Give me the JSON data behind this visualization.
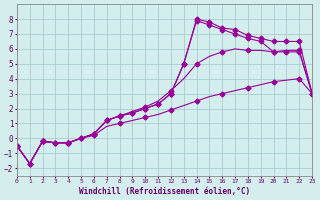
{
  "xlabel": "Windchill (Refroidissement éolien,°C)",
  "bg_color": "#d4eeee",
  "grid_color": "#aacccc",
  "line_color": "#990099",
  "xmin": 0,
  "xmax": 23,
  "ymin": -2.5,
  "ymax": 9,
  "series1_x": [
    0,
    1,
    2,
    3,
    4,
    5,
    6,
    7,
    8,
    9,
    10,
    11,
    12,
    13,
    14,
    15,
    16,
    17,
    18,
    19,
    20,
    21,
    22,
    23
  ],
  "series1_y": [
    -0.5,
    -1.7,
    -0.2,
    -0.3,
    -0.3,
    0.0,
    0.3,
    1.2,
    1.5,
    1.7,
    2.0,
    2.3,
    3.0,
    5.0,
    8.0,
    7.8,
    7.4,
    7.3,
    6.9,
    6.7,
    6.5,
    6.5,
    6.5,
    3.0
  ],
  "series2_x": [
    0,
    1,
    2,
    3,
    4,
    5,
    6,
    7,
    8,
    9,
    10,
    11,
    12,
    13,
    14,
    15,
    16,
    17,
    18,
    19,
    20,
    21,
    22,
    23
  ],
  "series2_y": [
    -0.5,
    -1.7,
    -0.2,
    -0.3,
    -0.3,
    0.0,
    0.3,
    1.2,
    1.5,
    1.7,
    2.0,
    2.3,
    3.0,
    5.0,
    7.9,
    7.6,
    7.3,
    7.0,
    6.7,
    6.5,
    5.8,
    5.8,
    5.8,
    3.0
  ],
  "series3_x": [
    0,
    1,
    2,
    3,
    4,
    5,
    6,
    7,
    8,
    9,
    10,
    11,
    12,
    13,
    14,
    15,
    16,
    17,
    18,
    19,
    20,
    21,
    22,
    23
  ],
  "series3_y": [
    -0.5,
    -1.7,
    -0.2,
    -0.3,
    -0.3,
    0.0,
    0.3,
    1.2,
    1.5,
    1.8,
    2.1,
    2.5,
    3.2,
    4.0,
    5.0,
    5.5,
    5.8,
    6.0,
    5.9,
    5.9,
    5.8,
    5.9,
    5.9,
    3.0
  ],
  "series4_x": [
    0,
    1,
    2,
    3,
    4,
    5,
    6,
    7,
    8,
    9,
    10,
    11,
    12,
    13,
    14,
    15,
    16,
    17,
    18,
    19,
    20,
    21,
    22,
    23
  ],
  "series4_y": [
    -0.5,
    -1.7,
    -0.2,
    -0.3,
    -0.3,
    0.0,
    0.2,
    0.8,
    1.0,
    1.2,
    1.4,
    1.6,
    1.9,
    2.2,
    2.5,
    2.8,
    3.0,
    3.2,
    3.4,
    3.6,
    3.8,
    3.9,
    4.0,
    3.0
  ],
  "yticks": [
    -2,
    -1,
    0,
    1,
    2,
    3,
    4,
    5,
    6,
    7,
    8
  ],
  "xticks": [
    0,
    1,
    2,
    3,
    4,
    5,
    6,
    7,
    8,
    9,
    10,
    11,
    12,
    13,
    14,
    15,
    16,
    17,
    18,
    19,
    20,
    21,
    22,
    23
  ]
}
